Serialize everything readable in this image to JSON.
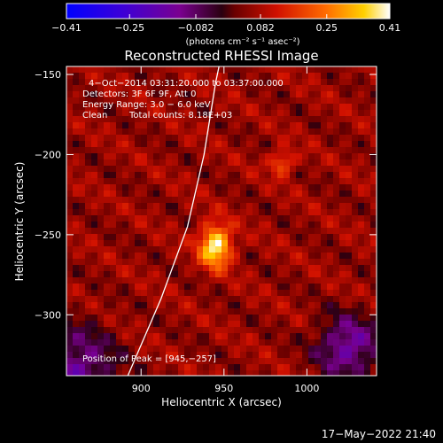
{
  "chart_data": {
    "type": "heatmap",
    "title": "Reconstructed RHESSI Image",
    "xlabel": "Heliocentric X (arcsec)",
    "ylabel": "Heliocentric Y (arcsec)",
    "xlim": [
      855,
      1042
    ],
    "ylim": [
      -338,
      -145
    ],
    "xticks": [
      {
        "value": 900,
        "label": "900"
      },
      {
        "value": 950,
        "label": "950"
      },
      {
        "value": 1000,
        "label": "1000"
      }
    ],
    "yticks": [
      {
        "value": -150,
        "label": "−150"
      },
      {
        "value": -200,
        "label": "−200"
      },
      {
        "value": -250,
        "label": "−250"
      },
      {
        "value": -300,
        "label": "−300"
      }
    ],
    "colorbar": {
      "range": [
        -0.41,
        0.41
      ],
      "ticks": [
        {
          "value": -0.41,
          "label": "−0.41"
        },
        {
          "value": -0.25,
          "label": "−0.25"
        },
        {
          "value": -0.082,
          "label": "−0.082"
        },
        {
          "value": 0.082,
          "label": "0.082"
        },
        {
          "value": 0.25,
          "label": "0.25"
        },
        {
          "value": 0.41,
          "label": "0.41"
        }
      ],
      "unit_label": "(photons cm⁻² s⁻¹ asec⁻²)"
    },
    "annotations": [
      "4−Oct−2014 03:31:20.000 to 03:37:00.000",
      "Detectors: 3F 6F 9F, Att 0",
      "Energy Range: 3.0 − 6.0 keV",
      "Clean",
      "Total counts: 8.18E+03"
    ],
    "peak_label": "Position of Peak = [945,−257]",
    "peak": {
      "x": 945,
      "y": -257,
      "value": 0.41
    },
    "secondary_source": {
      "x": 985,
      "y": -205,
      "value": 0.3
    },
    "limb_points": [
      [
        892,
        -338
      ],
      [
        912,
        -290
      ],
      [
        928,
        -245
      ],
      [
        938,
        -200
      ],
      [
        945,
        -155
      ],
      [
        947,
        -145
      ]
    ]
  },
  "timestamp": "17−May−2022 21:40"
}
